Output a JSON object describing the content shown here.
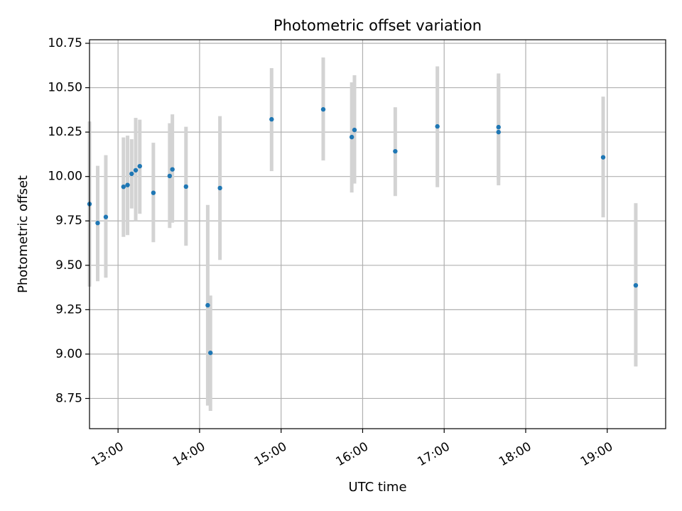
{
  "chart_data": {
    "type": "scatter",
    "title": "Photometric offset variation",
    "xlabel": "UTC time",
    "ylabel": "Photometric offset",
    "x_unit": "hours",
    "xlim": [
      "12:39",
      "19:43"
    ],
    "ylim": [
      8.58,
      10.77
    ],
    "x_ticks": [
      "13:00",
      "14:00",
      "15:00",
      "16:00",
      "17:00",
      "18:00",
      "19:00"
    ],
    "y_ticks": [
      "8.75",
      "9.00",
      "9.25",
      "9.50",
      "9.75",
      "10.00",
      "10.25",
      "10.50",
      "10.75"
    ],
    "grid": true,
    "colors": {
      "points": "#1f77b4",
      "errorbars": "#d3d3d3",
      "grid": "#b0b0b0"
    },
    "points": [
      {
        "x": "12:39",
        "y": 9.845,
        "ylow": 9.38,
        "yhigh": 10.31
      },
      {
        "x": "12:45",
        "y": 9.738,
        "ylow": 9.41,
        "yhigh": 10.06
      },
      {
        "x": "12:51",
        "y": 9.772,
        "ylow": 9.43,
        "yhigh": 10.12
      },
      {
        "x": "13:04",
        "y": 9.942,
        "ylow": 9.66,
        "yhigh": 10.22
      },
      {
        "x": "13:07",
        "y": 9.952,
        "ylow": 9.67,
        "yhigh": 10.23
      },
      {
        "x": "13:10",
        "y": 10.015,
        "ylow": 9.82,
        "yhigh": 10.21
      },
      {
        "x": "13:13",
        "y": 10.035,
        "ylow": 9.75,
        "yhigh": 10.33
      },
      {
        "x": "13:16",
        "y": 10.058,
        "ylow": 9.79,
        "yhigh": 10.32
      },
      {
        "x": "13:26",
        "y": 9.908,
        "ylow": 9.63,
        "yhigh": 10.19
      },
      {
        "x": "13:38",
        "y": 10.003,
        "ylow": 9.71,
        "yhigh": 10.3
      },
      {
        "x": "13:40",
        "y": 10.04,
        "ylow": 9.74,
        "yhigh": 10.35
      },
      {
        "x": "13:50",
        "y": 9.943,
        "ylow": 9.61,
        "yhigh": 10.28
      },
      {
        "x": "14:06",
        "y": 9.275,
        "ylow": 8.71,
        "yhigh": 9.84
      },
      {
        "x": "14:08",
        "y": 9.007,
        "ylow": 8.68,
        "yhigh": 9.33
      },
      {
        "x": "14:15",
        "y": 9.935,
        "ylow": 9.53,
        "yhigh": 10.34
      },
      {
        "x": "14:53",
        "y": 10.322,
        "ylow": 10.03,
        "yhigh": 10.61
      },
      {
        "x": "15:31",
        "y": 10.378,
        "ylow": 10.09,
        "yhigh": 10.67
      },
      {
        "x": "15:52",
        "y": 10.222,
        "ylow": 9.91,
        "yhigh": 10.53
      },
      {
        "x": "15:54",
        "y": 10.262,
        "ylow": 9.96,
        "yhigh": 10.57
      },
      {
        "x": "16:24",
        "y": 10.142,
        "ylow": 9.89,
        "yhigh": 10.39
      },
      {
        "x": "16:55",
        "y": 10.282,
        "ylow": 9.94,
        "yhigh": 10.62
      },
      {
        "x": "17:40",
        "y": 10.278,
        "ylow": 9.98,
        "yhigh": 10.58
      },
      {
        "x": "17:40",
        "y": 10.25,
        "ylow": 9.95,
        "yhigh": 10.55
      },
      {
        "x": "18:57",
        "y": 10.108,
        "ylow": 9.77,
        "yhigh": 10.45
      },
      {
        "x": "19:21",
        "y": 9.387,
        "ylow": 8.93,
        "yhigh": 9.85
      }
    ]
  }
}
